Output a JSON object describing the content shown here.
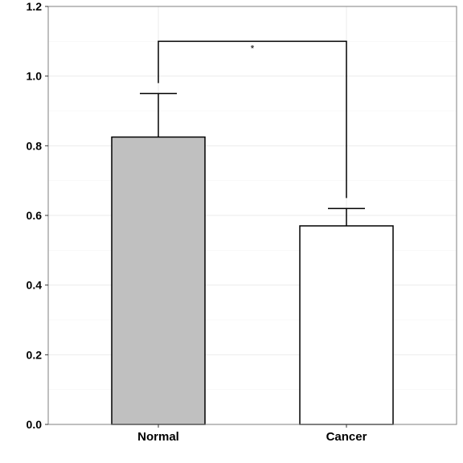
{
  "chart_data": {
    "type": "bar",
    "title": "",
    "xlabel": "",
    "ylabel": "",
    "categories": [
      "Normal",
      "Cancer"
    ],
    "values": [
      0.825,
      0.57
    ],
    "error_upper": [
      0.95,
      0.62
    ],
    "colors": [
      "#c0c0c0",
      "#ffffff"
    ],
    "ylim": [
      0,
      1.2
    ],
    "yticks": [
      0.0,
      0.2,
      0.4,
      0.6,
      0.8,
      1.0,
      1.2
    ],
    "ytick_labels": [
      "0.0",
      "0.2",
      "0.4",
      "0.6",
      "0.8",
      "1.0",
      "1.2"
    ],
    "grid": true,
    "significance": {
      "label": "*",
      "bracket_y": 1.1,
      "left_end_y": 0.98,
      "right_end_y": 0.65
    }
  }
}
